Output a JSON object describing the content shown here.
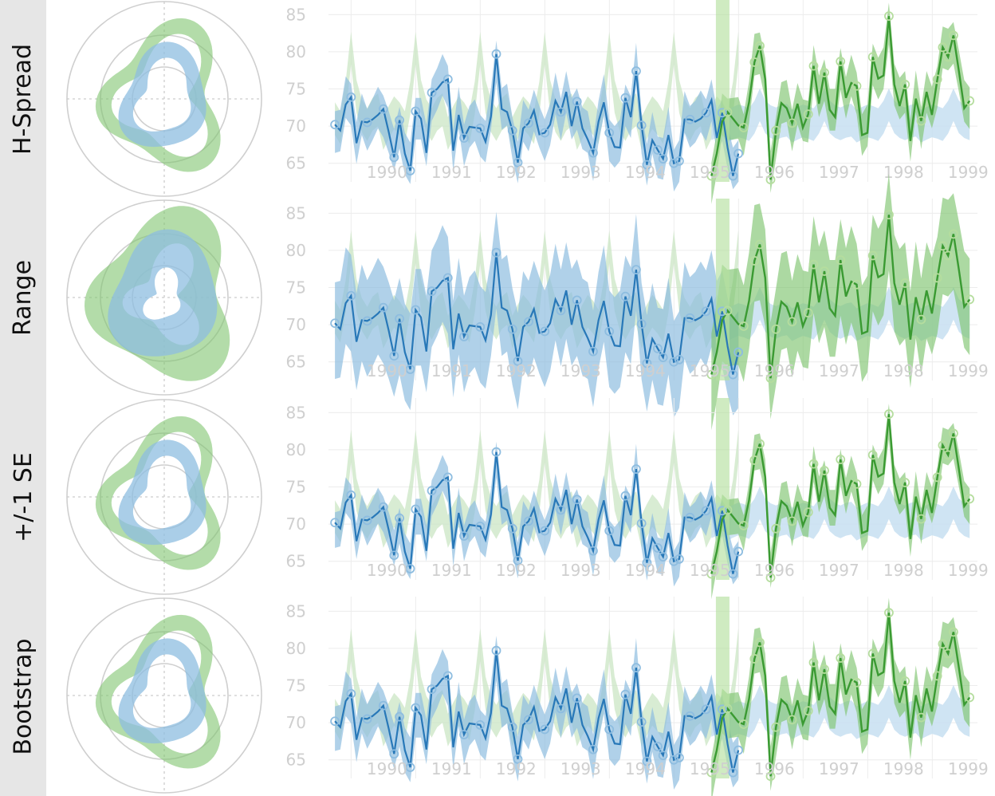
{
  "colors": {
    "history_blue": "#2878b8",
    "history_band": "#8ebde0",
    "forecast_green": "#3a9a32",
    "forecast_band": "#80c470",
    "future_band_light": "#c7dff1",
    "past_band_light": "#cbe6c4",
    "forecast_marker": "#b5dd9e",
    "divider": "#b5e0a0",
    "grid": "#ececec",
    "tick": "#cfcfcf",
    "panel": "#e6e6e6"
  },
  "chart_data": {
    "type": "line",
    "rows": [
      {
        "label": "H-Spread"
      },
      {
        "label": "Range"
      },
      {
        "label": "+/-1 SE"
      },
      {
        "label": "Bootstrap"
      }
    ],
    "x_ticks": [
      "1990",
      "1991",
      "1992",
      "1993",
      "1994",
      "1995",
      "1996",
      "1997",
      "1998",
      "1999"
    ],
    "y_ticks": [
      65,
      70,
      75,
      80,
      85
    ],
    "ylim": [
      62.5,
      86
    ],
    "xlim": [
      1989.65,
      1999.7
    ],
    "forecast_start": 1995.6,
    "series": [
      {
        "name": "",
        "x0": 1989.75,
        "step": 0.0833,
        "values": [
          70.2,
          69.4,
          72.9,
          73.9,
          67.7,
          70.6,
          70.5,
          70.9,
          71.5,
          72.3,
          69.2,
          65.8,
          70.8,
          66.3,
          64.0,
          72.0,
          71.0,
          66.4,
          74.5,
          75.0,
          75.9,
          76.3,
          66.7,
          71.5,
          68.4,
          69.9,
          69.8,
          69.7,
          67.9,
          71.3,
          79.7,
          72.3,
          71.9,
          69.4,
          65.1,
          69.7,
          70.4,
          72.1,
          68.9,
          69.1,
          70.2,
          73.4,
          71.9,
          74.6,
          70.0,
          73.3,
          69.7,
          68.2,
          66.4,
          70.6,
          73.2,
          69.1,
          67.2,
          67.1,
          73.8,
          71.2,
          77.4,
          70.1,
          64.8,
          68.1,
          66.8,
          65.6,
          68.8,
          65.0,
          65.3,
          70.9,
          70.9,
          70.6,
          71.0,
          71.8,
          73.5,
          68.4,
          71.8,
          67.1,
          63.3,
          66.3
        ]
      },
      {
        "name": "",
        "x0": 1995.58,
        "step": 0.0833,
        "values": [
          63.3,
          66.3,
          70.6,
          71.9,
          71.0,
          70.1,
          69.8,
          73.2,
          78.6,
          80.8,
          76.3,
          62.8,
          69.4,
          73.1,
          72.4,
          70.4,
          73.0,
          69.8,
          71.6,
          78.1,
          73.0,
          77.2,
          72.2,
          71.2,
          78.7,
          73.8,
          75.8,
          75.4,
          68.8,
          69.1,
          79.3,
          76.4,
          76.8,
          84.8,
          75.6,
          72.7,
          75.6,
          68.0,
          73.7,
          70.7,
          74.6,
          71.5,
          76.3,
          80.6,
          79.3,
          82.2,
          77.4,
          72.4,
          73.4
        ]
      }
    ]
  }
}
